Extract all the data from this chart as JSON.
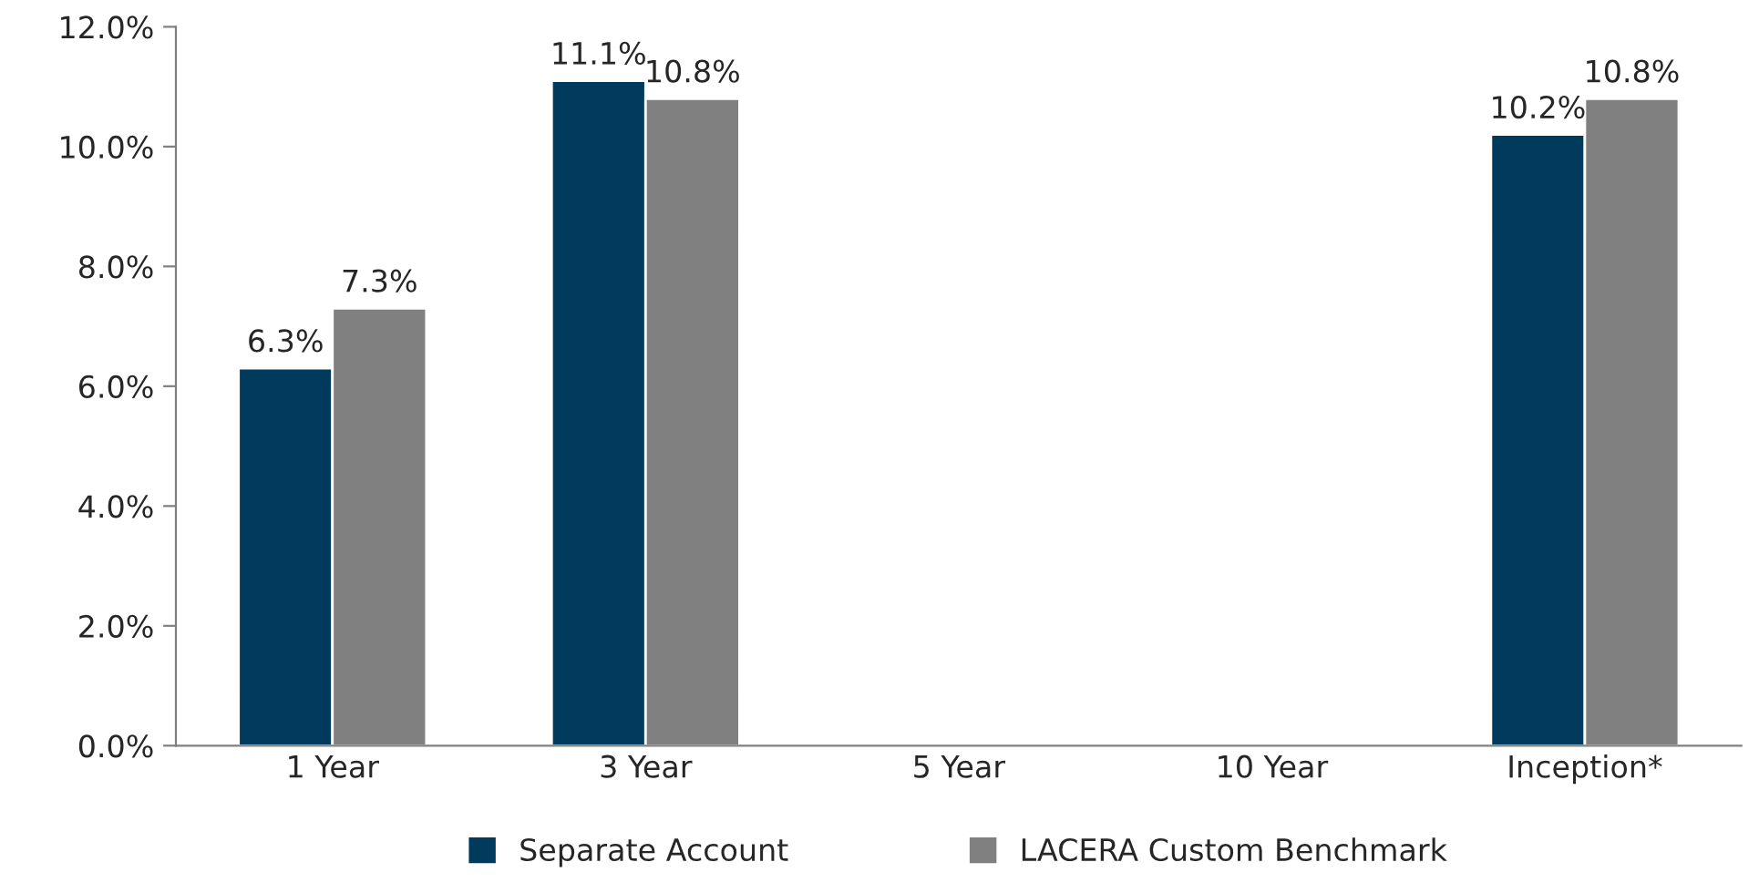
{
  "chart_data": {
    "type": "bar",
    "categories": [
      "1 Year",
      "3 Year",
      "5 Year",
      "10 Year",
      "Inception*"
    ],
    "series": [
      {
        "name": "Separate Account",
        "color": "#003a5c",
        "values": [
          6.3,
          11.1,
          null,
          null,
          10.2
        ],
        "value_labels": [
          "6.3%",
          "11.1%",
          null,
          null,
          "10.2%"
        ]
      },
      {
        "name": "LACERA Custom Benchmark",
        "color": "#808080",
        "values": [
          7.3,
          10.8,
          null,
          null,
          10.8
        ],
        "value_labels": [
          "7.3%",
          "10.8%",
          null,
          null,
          "10.8%"
        ]
      }
    ],
    "ylim": [
      0,
      12
    ],
    "yticks": [
      {
        "value": 0,
        "label": "0.0%"
      },
      {
        "value": 2,
        "label": "2.0%"
      },
      {
        "value": 4,
        "label": "4.0%"
      },
      {
        "value": 6,
        "label": "6.0%"
      },
      {
        "value": 8,
        "label": "8.0%"
      },
      {
        "value": 10,
        "label": "10.0%"
      },
      {
        "value": 12,
        "label": "12.0%"
      }
    ],
    "legend": "bottom",
    "grid": false
  }
}
